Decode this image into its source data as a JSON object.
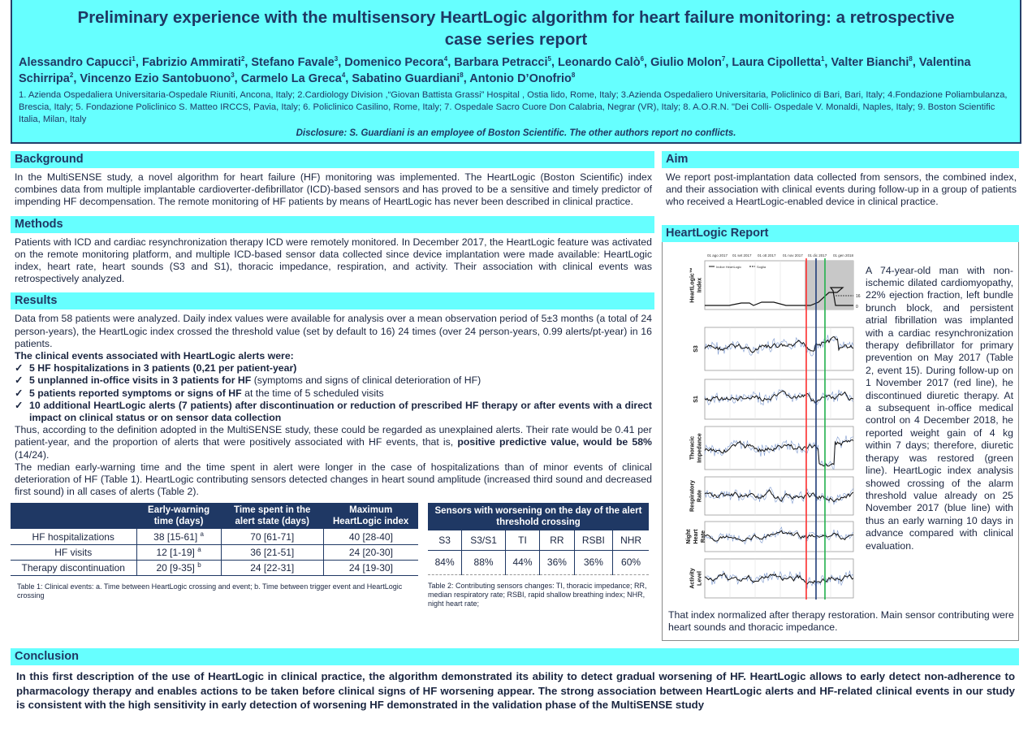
{
  "header": {
    "title": "Preliminary experience with the multisensory HeartLogic algorithm for heart failure monitoring: a retrospective case series report",
    "authors": [
      {
        "name": "Alessandro Capucci",
        "aff": "1"
      },
      {
        "name": "Fabrizio Ammirati",
        "aff": "2"
      },
      {
        "name": "Stefano Favale",
        "aff": "3"
      },
      {
        "name": "Domenico Pecora",
        "aff": "4"
      },
      {
        "name": "Barbara Petracci",
        "aff": "5"
      },
      {
        "name": "Leonardo Calò",
        "aff": "6"
      },
      {
        "name": "Giulio Molon",
        "aff": "7"
      },
      {
        "name": "Laura Cipolletta",
        "aff": "1"
      },
      {
        "name": "Valter Bianchi",
        "aff": "8"
      },
      {
        "name": "Valentina Schirripa",
        "aff": "2"
      },
      {
        "name": "Vincenzo Ezio Santobuono",
        "aff": "3"
      },
      {
        "name": "Carmelo La Greca",
        "aff": "4"
      },
      {
        "name": "Sabatino Guardiani",
        "aff": "8"
      },
      {
        "name": "Antonio D’Onofrio",
        "aff": "8"
      }
    ],
    "affiliations": "1. Azienda Ospedaliera Universitaria-Ospedale Riuniti, Ancona, Italy; 2.Cardiology Division ,“Giovan Battista Grassi” Hospital , Ostia lido, Rome, Italy; 3.Azienda Ospedaliero Universitaria, Policlinico di Bari, Bari, Italy; 4.Fondazione Poliambulanza, Brescia, Italy; 5. Fondazione Policlinico S. Matteo IRCCS, Pavia, Italy; 6. Policlinico Casilino, Rome, Italy; 7. Ospedale Sacro Cuore Don Calabria, Negrar (VR), Italy; 8. A.O.R.N. \"Dei Colli- Ospedale V. Monaldi, Naples, Italy; 9. Boston Scientific Italia, Milan, Italy",
    "disclosure": "Disclosure: S. Guardiani is an employee  of Boston Scientific. The other authors report no conflicts."
  },
  "background": {
    "heading": "Background",
    "text": "In the MultiSENSE study, a novel algorithm for heart failure (HF) monitoring was implemented. The HeartLogic (Boston Scientific) index combines data from multiple implantable cardioverter-defibrillator (ICD)-based sensors and has proved to be a sensitive and timely predictor of impending HF decompensation. The remote monitoring of HF patients by means of HeartLogic has never been described in clinical practice."
  },
  "aim": {
    "heading": "Aim",
    "text": "We report post-implantation data collected from sensors, the combined index, and their association with clinical events during follow-up in a group of patients who received a HeartLogic-enabled device in clinical practice."
  },
  "methods": {
    "heading": "Methods",
    "text": "Patients with ICD and cardiac resynchronization therapy ICD were remotely monitored. In December 2017, the HeartLogic feature was activated on the remote monitoring platform, and multiple ICD-based sensor data collected since device implantation were made available: HeartLogic index, heart rate, heart sounds (S3 and S1), thoracic impedance, respiration, and activity. Their association with clinical events was retrospectively analyzed."
  },
  "results": {
    "heading": "Results",
    "p1": "Data from 58 patients were analyzed. Daily index values were available for analysis over a mean observation period of 5±3 months (a total of 24 person-years), the HeartLogic index crossed the threshold value (set by default to 16) 24 times (over 24 person-years, 0.99 alerts/pt-year) in 16 patients.",
    "p2": "The clinical events associated with HeartLogic alerts were:",
    "bullets": [
      {
        "bold": "5 HF hospitalizations in 3 patients (0,21 per patient-year)",
        "rest": ""
      },
      {
        "bold": "5 unplanned in-office visits in 3 patients for HF",
        "rest": " (symptoms and signs of clinical deterioration of HF)"
      },
      {
        "bold": "5 patients reported symptoms or signs of HF",
        "rest": " at the time of 5 scheduled visits"
      },
      {
        "bold": "10 additional HeartLogic alerts (7 patients) after discontinuation or reduction of prescribed HF therapy or after events with a direct impact on clinical status or on sensor data collection",
        "rest": ""
      }
    ],
    "p3a": "Thus, according to the definition adopted in the MultiSENSE study, these could be regarded as unexplained alerts. Their rate would be 0.41 per patient-year, and the proportion of alerts that were positively associated with HF events, that is, ",
    "p3b": "positive predictive value, would be 58%",
    "p3c": " (14/24).",
    "p4": "The median early-warning time and the time spent in alert were longer in the case of hospitalizations than of minor events of clinical deterioration of HF (Table 1). HeartLogic contributing sensors detected changes in heart sound amplitude (increased third sound and decreased first sound) in all cases of alerts (Table 2)."
  },
  "table1": {
    "headers": [
      "",
      "Early-warning time (days)",
      "Time spent in the alert state (days)",
      "Maximum HeartLogic index"
    ],
    "rows": [
      [
        "HF hospitalizations",
        "38 [15-61]",
        "a",
        "70 [61-71]",
        "40 [28-40]"
      ],
      [
        "HF visits",
        "12 [1-19]",
        "a",
        "36 [21-51]",
        "24 [20-30]"
      ],
      [
        "Therapy discontinuation",
        "20 [9-35]",
        "b",
        "24 [22-31]",
        "24 [19-30]"
      ]
    ],
    "caption": "Table 1: Clinical events: a. Time between HeartLogic crossing and event; b. Time between trigger event and HeartLogic crossing"
  },
  "table2": {
    "header": "Sensors with worsening on the day of the alert threshold crossing",
    "cols": [
      "S3",
      "S3/S1",
      "TI",
      "RR",
      "RSBI",
      "NHR"
    ],
    "values": [
      "84%",
      "88%",
      "44%",
      "36%",
      "36%",
      "60%"
    ],
    "caption": "Table 2: Contributing sensors changes: TI, thoracic impedance; RR, median respiratory rate; RSBI, rapid shallow breathing index; NHR, night heart rate;"
  },
  "report": {
    "heading": "HeartLogic Report",
    "text": "A 74-year-old man with non-ischemic dilated cardiomyopathy, 22% ejection fraction, left bundle brunch block, and persistent atrial fibrillation was implanted with a cardiac resynchronization therapy defibrillator for primary prevention on May 2017 (Table 2, event 15). During follow-up on 1 November 2017 (red line), he discontinued diuretic therapy. At a subsequent in-office medical control on 4 December 2018, he reported weight gain of 4 kg within 7 days; therefore, diuretic therapy was restored (green line). HeartLogic index analysis showed crossing of the alarm threshold value already on 25 November 2017 (blue line) with thus an early warning 10 days in advance compared with clinical evaluation.",
    "after": "That index normalized after therapy restoration. Main sensor contributing were heart sounds and thoracic impedance.",
    "figure": {
      "dates": [
        "01 ago 2017",
        "01 set 2017",
        "01 ott 2017",
        "01 nov 2017",
        "01 dic 2017",
        "01 gen 2018"
      ],
      "legend": [
        "Indice HeartLogic",
        "Soglia"
      ],
      "threshold": "16",
      "zero": "0",
      "panels": [
        "HeartLogic™ Index",
        "S3",
        "S1",
        "Thoracic Impedance",
        "Respiratory Rate",
        "Night Heart Rate",
        "Activity Level"
      ],
      "line_colors": {
        "discontinuation": "#ff3030",
        "alert": "#1f3c78",
        "restored": "#22b14c"
      }
    }
  },
  "conclusion": {
    "heading": "Conclusion",
    "text": "In this first description of the use of HeartLogic in clinical practice, the algorithm demonstrated its ability to detect gradual worsening of HF. HeartLogic allows to early detect non-adherence to pharmacology therapy and enables actions to be taken before clinical signs of HF worsening appear. The strong association between HeartLogic alerts and HF-related clinical events in our study is consistent with the high sensitivity in early detection of worsening HF demonstrated in the validation phase of the MultiSENSE study"
  }
}
